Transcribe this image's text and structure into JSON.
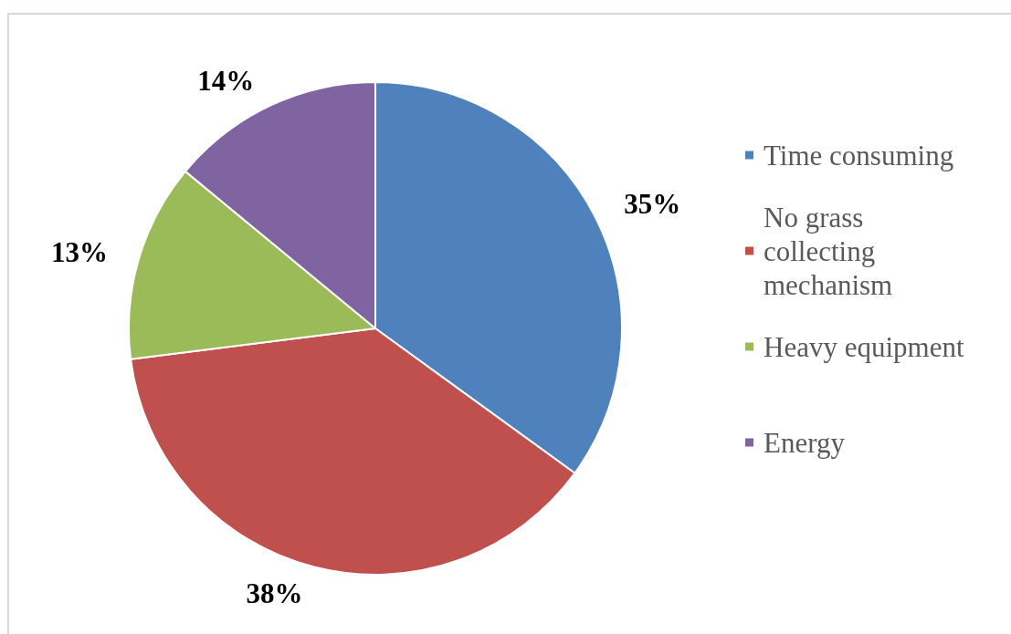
{
  "chart_data": {
    "type": "pie",
    "categories": [
      "Time consuming",
      "No grass collecting mechanism",
      "Heavy equipment",
      "Energy"
    ],
    "values": [
      35,
      38,
      13,
      14
    ],
    "colors": [
      "#4f81bd",
      "#c0504d",
      "#9bbb59",
      "#8064a2"
    ],
    "value_labels": [
      "35%",
      "38%",
      "13%",
      "14%"
    ],
    "legend": "right"
  }
}
